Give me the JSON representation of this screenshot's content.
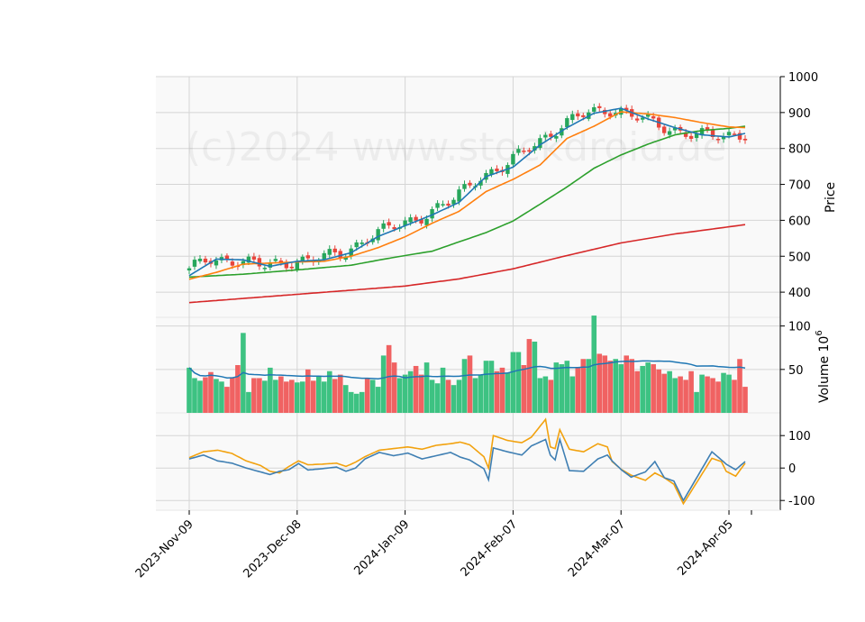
{
  "chart_data": {
    "type": "candlestick",
    "watermark": "(c)2024 www.stockdroid.de",
    "x_tick_labels": [
      "2023-Nov-09",
      "2023-Dec-08",
      "2024-Jan-09",
      "2024-Feb-07",
      "2024-Mar-07",
      "2024-Apr-05"
    ],
    "colors": {
      "up": "#26a65b",
      "down": "#e8453c",
      "up_volume": "#3dc282",
      "down_volume": "#f06262",
      "ma1": "#1f77b4",
      "ma2": "#ff7f0e",
      "ma3": "#2ca02c",
      "ma4": "#d62728",
      "macd": "#3f7fb3",
      "signal": "#f2a20f"
    },
    "price_panel": {
      "ylabel": "Price",
      "ylim": [
        330,
        1000
      ],
      "yticks": [
        400,
        500,
        600,
        700,
        800,
        900,
        1000
      ],
      "ma_anchors": {
        "ma1": [
          [
            0,
            446
          ],
          [
            5,
            492
          ],
          [
            10,
            490
          ],
          [
            15,
            472
          ],
          [
            20,
            486
          ],
          [
            25,
            490
          ],
          [
            30,
            510
          ],
          [
            35,
            555
          ],
          [
            40,
            585
          ],
          [
            45,
            615
          ],
          [
            50,
            650
          ],
          [
            55,
            722
          ],
          [
            60,
            748
          ],
          [
            65,
            810
          ],
          [
            70,
            858
          ],
          [
            75,
            898
          ],
          [
            80,
            912
          ],
          [
            85,
            882
          ],
          [
            90,
            858
          ],
          [
            95,
            838
          ],
          [
            100,
            832
          ],
          [
            103,
            842
          ]
        ],
        "ma2": [
          [
            0,
            436
          ],
          [
            5,
            455
          ],
          [
            10,
            478
          ],
          [
            15,
            481
          ],
          [
            20,
            484
          ],
          [
            25,
            486
          ],
          [
            30,
            500
          ],
          [
            35,
            524
          ],
          [
            40,
            554
          ],
          [
            45,
            592
          ],
          [
            50,
            625
          ],
          [
            55,
            680
          ],
          [
            60,
            714
          ],
          [
            65,
            754
          ],
          [
            70,
            828
          ],
          [
            75,
            862
          ],
          [
            80,
            902
          ],
          [
            85,
            896
          ],
          [
            90,
            886
          ],
          [
            95,
            872
          ],
          [
            100,
            860
          ],
          [
            103,
            858
          ]
        ],
        "ma3": [
          [
            0,
            442
          ],
          [
            10,
            450
          ],
          [
            20,
            462
          ],
          [
            30,
            475
          ],
          [
            35,
            489
          ],
          [
            40,
            502
          ],
          [
            45,
            514
          ],
          [
            50,
            540
          ],
          [
            55,
            566
          ],
          [
            60,
            598
          ],
          [
            65,
            645
          ],
          [
            70,
            693
          ],
          [
            75,
            745
          ],
          [
            80,
            782
          ],
          [
            85,
            812
          ],
          [
            90,
            838
          ],
          [
            95,
            850
          ],
          [
            100,
            856
          ],
          [
            103,
            862
          ]
        ],
        "ma4": [
          [
            0,
            371
          ],
          [
            20,
            394
          ],
          [
            40,
            417
          ],
          [
            50,
            437
          ],
          [
            60,
            465
          ],
          [
            70,
            502
          ],
          [
            80,
            537
          ],
          [
            90,
            562
          ],
          [
            103,
            588
          ]
        ]
      }
    },
    "volume_panel": {
      "ylabel": "Volume  10",
      "ylabel_exponent": "6",
      "ylim": [
        0,
        110
      ],
      "yticks": [
        50,
        100
      ],
      "volumes_millions": [
        52,
        40,
        37,
        41,
        47,
        39,
        36,
        30,
        41,
        55,
        92,
        24,
        40,
        40,
        37,
        52,
        38,
        42,
        36,
        38,
        35,
        36,
        50,
        37,
        42,
        36,
        48,
        39,
        44,
        32,
        24,
        22,
        24,
        40,
        38,
        30,
        66,
        78,
        58,
        40,
        44,
        48,
        54,
        44,
        58,
        38,
        34,
        52,
        38,
        32,
        38,
        62,
        66,
        40,
        44,
        60,
        60,
        48,
        52,
        46,
        70,
        70,
        55,
        85,
        82,
        40,
        42,
        38,
        58,
        56,
        60,
        42,
        52,
        62,
        62,
        112,
        68,
        66,
        60,
        62,
        56,
        66,
        62,
        48,
        54,
        58,
        56,
        50,
        45,
        48,
        40,
        42,
        38,
        48,
        24,
        44,
        42,
        40,
        36,
        46,
        44,
        38,
        62,
        30
      ]
    },
    "indicator_panel": {
      "ylim": [
        -130,
        170
      ],
      "yticks": [
        -100,
        0,
        100
      ],
      "macd_anchors": [
        [
          0,
          28
        ],
        [
          3,
          40
        ],
        [
          6,
          22
        ],
        [
          9,
          15
        ],
        [
          12,
          0
        ],
        [
          15,
          -12
        ],
        [
          17,
          -20
        ],
        [
          19,
          -10
        ],
        [
          21,
          -5
        ],
        [
          23,
          14
        ],
        [
          25,
          -6
        ],
        [
          28,
          -2
        ],
        [
          31,
          3
        ],
        [
          33,
          -10
        ],
        [
          35,
          0
        ],
        [
          37,
          28
        ],
        [
          40,
          48
        ],
        [
          43,
          38
        ],
        [
          46,
          46
        ],
        [
          49,
          28
        ],
        [
          52,
          38
        ],
        [
          55,
          48
        ],
        [
          57,
          34
        ],
        [
          59,
          25
        ],
        [
          62,
          -2
        ],
        [
          63,
          -36
        ],
        [
          64,
          62
        ],
        [
          67,
          50
        ],
        [
          70,
          40
        ],
        [
          72,
          68
        ],
        [
          75,
          88
        ],
        [
          76,
          40
        ],
        [
          77,
          25
        ],
        [
          78,
          88
        ],
        [
          80,
          -8
        ],
        [
          83,
          -10
        ],
        [
          86,
          28
        ],
        [
          88,
          40
        ],
        [
          89,
          22
        ],
        [
          91,
          -6
        ],
        [
          93,
          -28
        ],
        [
          96,
          -12
        ],
        [
          98,
          20
        ],
        [
          100,
          -30
        ],
        [
          102,
          -40
        ],
        [
          104,
          -100
        ],
        [
          107,
          -25
        ],
        [
          110,
          50
        ],
        [
          112,
          25
        ],
        [
          113,
          12
        ],
        [
          115,
          -5
        ],
        [
          117,
          20
        ]
      ],
      "signal_anchors": [
        [
          0,
          32
        ],
        [
          3,
          50
        ],
        [
          6,
          55
        ],
        [
          9,
          45
        ],
        [
          12,
          22
        ],
        [
          15,
          8
        ],
        [
          17,
          -10
        ],
        [
          19,
          -15
        ],
        [
          21,
          5
        ],
        [
          23,
          22
        ],
        [
          25,
          10
        ],
        [
          28,
          12
        ],
        [
          31,
          15
        ],
        [
          33,
          5
        ],
        [
          35,
          18
        ],
        [
          37,
          35
        ],
        [
          40,
          55
        ],
        [
          43,
          60
        ],
        [
          46,
          65
        ],
        [
          49,
          58
        ],
        [
          52,
          70
        ],
        [
          55,
          75
        ],
        [
          57,
          80
        ],
        [
          59,
          72
        ],
        [
          62,
          35
        ],
        [
          63,
          0
        ],
        [
          64,
          100
        ],
        [
          67,
          85
        ],
        [
          70,
          78
        ],
        [
          72,
          95
        ],
        [
          75,
          150
        ],
        [
          76,
          65
        ],
        [
          77,
          60
        ],
        [
          78,
          118
        ],
        [
          80,
          58
        ],
        [
          83,
          50
        ],
        [
          86,
          75
        ],
        [
          88,
          65
        ],
        [
          89,
          20
        ],
        [
          91,
          -5
        ],
        [
          93,
          -22
        ],
        [
          96,
          -38
        ],
        [
          98,
          -15
        ],
        [
          100,
          -30
        ],
        [
          102,
          -50
        ],
        [
          104,
          -110
        ],
        [
          107,
          -40
        ],
        [
          110,
          30
        ],
        [
          112,
          20
        ],
        [
          113,
          -10
        ],
        [
          115,
          -25
        ],
        [
          117,
          15
        ]
      ]
    }
  }
}
